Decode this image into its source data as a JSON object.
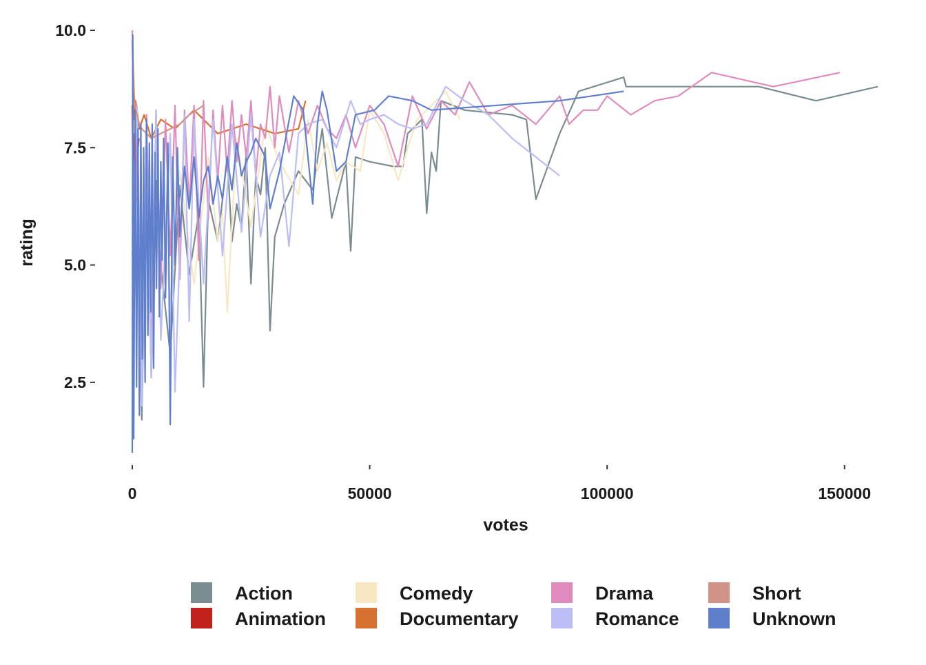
{
  "chart_data": {
    "type": "line",
    "xlabel": "votes",
    "ylabel": "rating",
    "xlim": [
      0,
      157000
    ],
    "ylim": [
      1.0,
      10.0
    ],
    "x_ticks": [
      {
        "value": 0,
        "label": "0"
      },
      {
        "value": 50000,
        "label": "50000"
      },
      {
        "value": 100000,
        "label": "100000"
      },
      {
        "value": 150000,
        "label": "150000"
      }
    ],
    "y_ticks": [
      {
        "value": 2.5,
        "label": "2.5"
      },
      {
        "value": 5.0,
        "label": "5.0"
      },
      {
        "value": 7.5,
        "label": "7.5"
      },
      {
        "value": 10.0,
        "label": "10.0"
      }
    ],
    "grid": false,
    "legend_position": "bottom",
    "legend": [
      {
        "label": "Action",
        "color": "#7a8c90"
      },
      {
        "label": "Animation",
        "color": "#c0211a"
      },
      {
        "label": "Comedy",
        "color": "#f7e8c3"
      },
      {
        "label": "Documentary",
        "color": "#d6712f"
      },
      {
        "label": "Drama",
        "color": "#df8bbd"
      },
      {
        "label": "Romance",
        "color": "#babef5"
      },
      {
        "label": "Short",
        "color": "#d19388"
      },
      {
        "label": "Unknown",
        "color": "#5f7fcc"
      }
    ],
    "series": [
      {
        "name": "Action",
        "color": "#7a8c90",
        "x": [
          0,
          1000,
          2000,
          3000,
          4000,
          5000,
          6000,
          8000,
          10000,
          12000,
          14000,
          15000,
          16000,
          18000,
          20000,
          21000,
          22000,
          23000,
          24000,
          25000,
          26000,
          27000,
          28000,
          29000,
          30000,
          32000,
          35000,
          38000,
          40000,
          42000,
          45000,
          46000,
          47000,
          50000,
          55000,
          57000,
          58000,
          60000,
          61000,
          62000,
          63000,
          64000,
          65000,
          70000,
          80000,
          83000,
          85000,
          90000,
          94000,
          103500,
          104000,
          108000,
          118000,
          132000,
          144000,
          157000
        ],
        "y": [
          5.2,
          6.8,
          1.7,
          7.4,
          2.6,
          6.8,
          5.0,
          3.1,
          6.7,
          4.8,
          6.1,
          2.4,
          6.4,
          5.5,
          7.3,
          5.5,
          6.3,
          5.8,
          7.4,
          4.6,
          6.9,
          6.5,
          7.5,
          3.6,
          5.6,
          6.3,
          7.0,
          6.6,
          7.9,
          6.0,
          7.2,
          5.3,
          7.3,
          7.2,
          7.1,
          7.1,
          7.8,
          8.0,
          8.1,
          6.1,
          7.4,
          7.0,
          8.5,
          8.3,
          8.2,
          8.1,
          6.4,
          7.8,
          8.7,
          9.0,
          8.8,
          8.8,
          8.8,
          8.8,
          8.5,
          8.8
        ]
      },
      {
        "name": "Animation",
        "color": "#c0211a",
        "x": [
          0,
          200,
          500,
          900,
          1400
        ],
        "y": [
          8.4,
          6.3,
          7.8,
          7.1,
          7.7
        ]
      },
      {
        "name": "Comedy",
        "color": "#f7e8c3",
        "x": [
          0,
          1000,
          2000,
          3000,
          4000,
          6000,
          8000,
          10000,
          13000,
          16000,
          18000,
          19000,
          20000,
          22000,
          25000,
          28000,
          31000,
          35000,
          37000,
          39000,
          41000,
          43000,
          45000,
          48000,
          50000,
          53000,
          56000,
          58000,
          60000,
          63000,
          66000,
          69000
        ],
        "y": [
          5.5,
          6.8,
          2.7,
          7.9,
          3.1,
          6.6,
          4.2,
          7.0,
          4.6,
          7.3,
          5.5,
          6.1,
          4.0,
          7.7,
          5.8,
          8.0,
          7.2,
          6.5,
          8.1,
          7.0,
          7.6,
          6.8,
          7.2,
          7.0,
          8.3,
          7.8,
          6.8,
          7.5,
          8.1,
          8.4,
          8.7,
          8.1
        ]
      },
      {
        "name": "Documentary",
        "color": "#d6712f",
        "x": [
          0,
          300,
          700,
          1500,
          2500,
          4000,
          6000,
          9000,
          13000,
          18000,
          24000,
          30000,
          35000,
          36500
        ],
        "y": [
          9.8,
          8.1,
          8.5,
          7.9,
          8.2,
          7.7,
          8.1,
          7.9,
          8.3,
          7.8,
          8.0,
          7.8,
          7.9,
          8.5
        ]
      },
      {
        "name": "Drama",
        "color": "#df8bbd",
        "x": [
          0,
          1000,
          2000,
          3000,
          4000,
          5000,
          6000,
          7000,
          8000,
          9000,
          10000,
          11000,
          12000,
          13000,
          14000,
          15000,
          16000,
          17000,
          18000,
          19000,
          20000,
          21000,
          22000,
          23000,
          24000,
          25000,
          26000,
          27000,
          28000,
          29000,
          30000,
          31000,
          33000,
          35000,
          37000,
          39000,
          41000,
          43000,
          45000,
          47000,
          50000,
          53000,
          56000,
          59000,
          62000,
          65000,
          68000,
          71000,
          75000,
          80000,
          85000,
          90000,
          92000,
          95000,
          98000,
          100000,
          105000,
          110000,
          115000,
          122000,
          135000,
          149000
        ],
        "y": [
          1.4,
          8.1,
          2.5,
          8.2,
          3.0,
          8.3,
          4.5,
          8.1,
          5.2,
          8.4,
          4.7,
          8.3,
          6.2,
          8.4,
          5.1,
          8.5,
          6.0,
          8.3,
          6.8,
          8.4,
          7.0,
          8.5,
          7.2,
          8.2,
          7.3,
          8.5,
          6.9,
          8.0,
          7.7,
          8.8,
          7.5,
          8.6,
          7.4,
          8.5,
          7.8,
          8.4,
          7.9,
          7.7,
          8.2,
          7.5,
          8.4,
          8.0,
          7.1,
          8.6,
          7.9,
          8.5,
          8.2,
          8.9,
          8.2,
          8.4,
          8.0,
          8.6,
          8.0,
          8.3,
          8.3,
          8.6,
          8.2,
          8.5,
          8.6,
          9.1,
          8.8,
          9.1
        ]
      },
      {
        "name": "Romance",
        "color": "#babef5",
        "x": [
          0,
          1000,
          2000,
          3000,
          4000,
          5000,
          6000,
          8000,
          9000,
          11000,
          12000,
          13000,
          15000,
          17000,
          19000,
          21000,
          23000,
          25000,
          27000,
          29000,
          31000,
          33000,
          35000,
          37000,
          40000,
          43000,
          46000,
          48000,
          50000,
          53000,
          56000,
          59000,
          62000,
          66000,
          70000,
          75000,
          80000,
          90000
        ],
        "y": [
          5.9,
          8.4,
          2.0,
          8.1,
          2.6,
          8.3,
          3.4,
          7.8,
          2.3,
          8.2,
          3.8,
          8.1,
          4.6,
          8.1,
          5.2,
          8.0,
          5.7,
          8.2,
          5.6,
          6.9,
          7.4,
          5.4,
          7.8,
          8.0,
          8.1,
          7.5,
          8.5,
          8.0,
          8.1,
          8.2,
          8.0,
          7.9,
          8.0,
          8.8,
          8.5,
          8.2,
          7.7,
          6.9
        ]
      },
      {
        "name": "Short",
        "color": "#d19388",
        "x": [
          0,
          200,
          400,
          700,
          1000,
          1500,
          2000,
          3000,
          4000,
          6000,
          8000,
          10000,
          12000,
          15000
        ],
        "y": [
          10.0,
          9.2,
          8.6,
          8.3,
          8.2,
          8.0,
          7.9,
          7.8,
          7.7,
          7.8,
          7.9,
          8.0,
          8.2,
          8.4
        ]
      },
      {
        "name": "Unknown",
        "color": "#5f7fcc",
        "x": [
          0,
          100,
          300,
          600,
          900,
          1200,
          1500,
          1800,
          2100,
          2400,
          2700,
          3000,
          3300,
          3600,
          3900,
          4200,
          4500,
          4800,
          5100,
          5400,
          5700,
          6000,
          6300,
          6600,
          7000,
          7500,
          8000,
          8500,
          9000,
          9500,
          10000,
          11000,
          12000,
          13000,
          14000,
          15000,
          16000,
          17000,
          18000,
          19000,
          20000,
          21000,
          22000,
          23000,
          24000,
          25000,
          26000,
          27000,
          28000,
          29000,
          31000,
          34000,
          36000,
          38000,
          39000,
          40000,
          41000,
          43000,
          45000,
          47000,
          51000,
          54000,
          59000,
          63000,
          90000,
          103500
        ],
        "y": [
          1.0,
          9.9,
          1.3,
          8.3,
          2.4,
          7.9,
          1.8,
          8.0,
          3.0,
          7.5,
          2.5,
          8.1,
          3.5,
          7.6,
          4.0,
          8.0,
          2.8,
          7.4,
          4.5,
          7.9,
          3.9,
          7.2,
          5.1,
          7.7,
          4.3,
          7.6,
          1.6,
          7.3,
          5.0,
          7.5,
          5.6,
          7.1,
          6.2,
          7.3,
          6.0,
          6.8,
          7.1,
          6.3,
          6.9,
          6.4,
          7.3,
          6.6,
          7.6,
          6.9,
          7.2,
          7.4,
          7.7,
          7.5,
          7.3,
          6.2,
          7.0,
          8.6,
          8.3,
          6.3,
          8.0,
          8.7,
          8.3,
          7.0,
          7.2,
          8.2,
          8.3,
          8.6,
          8.5,
          8.3,
          8.5,
          8.7
        ]
      }
    ]
  }
}
